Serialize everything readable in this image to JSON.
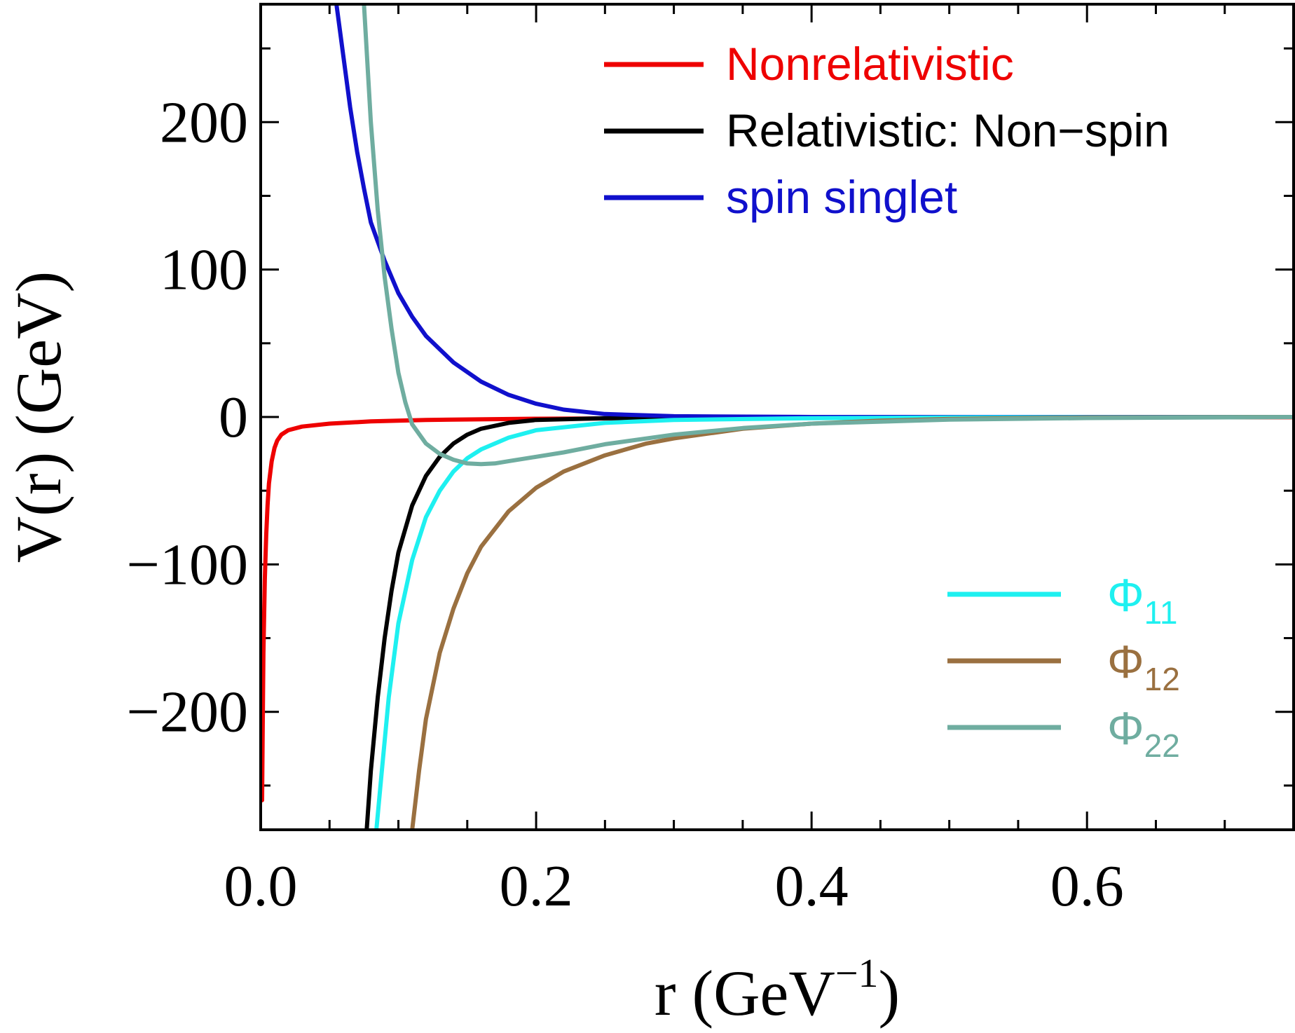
{
  "chart_data": {
    "type": "line",
    "xlabel": {
      "base": "r (GeV",
      "sup": "−1",
      "close": ")"
    },
    "ylabel": "V(r) (GeV)",
    "xlim": [
      0.0,
      0.75
    ],
    "ylim": [
      -280,
      280
    ],
    "x_ticks": [
      {
        "value": 0.0,
        "label": "0.0"
      },
      {
        "value": 0.2,
        "label": "0.2"
      },
      {
        "value": 0.4,
        "label": "0.4"
      },
      {
        "value": 0.6,
        "label": "0.6"
      }
    ],
    "y_ticks": [
      {
        "value": 200,
        "label": "200"
      },
      {
        "value": 100,
        "label": "100"
      },
      {
        "value": 0,
        "label": "0"
      },
      {
        "value": -100,
        "label": "−100"
      },
      {
        "value": -200,
        "label": "−200"
      }
    ],
    "x_minor_step": 0.05,
    "y_minor_step": 50,
    "grid": false,
    "series": [
      {
        "name": "Nonrelativistic",
        "legend_group": "top",
        "color": "#ee0000",
        "points": [
          [
            0.001,
            -260
          ],
          [
            0.0015,
            -210
          ],
          [
            0.002,
            -160
          ],
          [
            0.003,
            -110
          ],
          [
            0.004,
            -80
          ],
          [
            0.005,
            -60
          ],
          [
            0.006,
            -45
          ],
          [
            0.008,
            -30
          ],
          [
            0.01,
            -21
          ],
          [
            0.012,
            -16
          ],
          [
            0.015,
            -12
          ],
          [
            0.02,
            -9
          ],
          [
            0.03,
            -6.5
          ],
          [
            0.05,
            -4.5
          ],
          [
            0.08,
            -3
          ],
          [
            0.12,
            -2
          ],
          [
            0.2,
            -1.2
          ],
          [
            0.3,
            -0.8
          ],
          [
            0.5,
            -0.4
          ],
          [
            0.75,
            -0.2
          ]
        ]
      },
      {
        "name": "Relativistic: Non−spin",
        "legend_group": "top",
        "color": "#000000",
        "points": [
          [
            0.077,
            -280
          ],
          [
            0.08,
            -240
          ],
          [
            0.085,
            -190
          ],
          [
            0.09,
            -150
          ],
          [
            0.095,
            -118
          ],
          [
            0.1,
            -92
          ],
          [
            0.11,
            -60
          ],
          [
            0.12,
            -40
          ],
          [
            0.13,
            -27
          ],
          [
            0.14,
            -18
          ],
          [
            0.15,
            -12
          ],
          [
            0.16,
            -8
          ],
          [
            0.18,
            -4
          ],
          [
            0.2,
            -2
          ],
          [
            0.25,
            -0.8
          ],
          [
            0.3,
            -0.3
          ],
          [
            0.4,
            -0.1
          ],
          [
            0.75,
            0
          ]
        ]
      },
      {
        "name": "spin singlet",
        "legend_group": "top",
        "color": "#1010cc",
        "points": [
          [
            0.055,
            280
          ],
          [
            0.06,
            245
          ],
          [
            0.065,
            210
          ],
          [
            0.07,
            180
          ],
          [
            0.075,
            155
          ],
          [
            0.08,
            132
          ],
          [
            0.09,
            106
          ],
          [
            0.1,
            84
          ],
          [
            0.11,
            68
          ],
          [
            0.12,
            55
          ],
          [
            0.14,
            37
          ],
          [
            0.16,
            24
          ],
          [
            0.18,
            15
          ],
          [
            0.2,
            9
          ],
          [
            0.22,
            5
          ],
          [
            0.25,
            2
          ],
          [
            0.3,
            0.5
          ],
          [
            0.4,
            0
          ],
          [
            0.75,
            0
          ]
        ]
      },
      {
        "name": "Φ",
        "sub": "11",
        "legend_group": "bottom",
        "color": "#1ef0f0",
        "points": [
          [
            0.084,
            -280
          ],
          [
            0.088,
            -240
          ],
          [
            0.093,
            -190
          ],
          [
            0.1,
            -140
          ],
          [
            0.11,
            -97
          ],
          [
            0.12,
            -68
          ],
          [
            0.13,
            -50
          ],
          [
            0.14,
            -37
          ],
          [
            0.15,
            -28
          ],
          [
            0.16,
            -22
          ],
          [
            0.18,
            -14
          ],
          [
            0.2,
            -9
          ],
          [
            0.25,
            -4
          ],
          [
            0.3,
            -2
          ],
          [
            0.4,
            -0.8
          ],
          [
            0.5,
            -0.3
          ],
          [
            0.75,
            0
          ]
        ]
      },
      {
        "name": "Φ",
        "sub": "12",
        "legend_group": "bottom",
        "color": "#9a7040",
        "points": [
          [
            0.11,
            -280
          ],
          [
            0.115,
            -240
          ],
          [
            0.12,
            -205
          ],
          [
            0.13,
            -160
          ],
          [
            0.14,
            -130
          ],
          [
            0.15,
            -106
          ],
          [
            0.16,
            -88
          ],
          [
            0.18,
            -64
          ],
          [
            0.2,
            -48
          ],
          [
            0.22,
            -37
          ],
          [
            0.25,
            -26
          ],
          [
            0.28,
            -18
          ],
          [
            0.3,
            -14.5
          ],
          [
            0.35,
            -8
          ],
          [
            0.4,
            -4.5
          ],
          [
            0.45,
            -2.5
          ],
          [
            0.5,
            -1.3
          ],
          [
            0.6,
            -0.4
          ],
          [
            0.75,
            0
          ]
        ]
      },
      {
        "name": "Φ",
        "sub": "22",
        "legend_group": "bottom",
        "color": "#6fada0",
        "points": [
          [
            0.075,
            280
          ],
          [
            0.08,
            200
          ],
          [
            0.085,
            140
          ],
          [
            0.09,
            95
          ],
          [
            0.095,
            60
          ],
          [
            0.1,
            30
          ],
          [
            0.105,
            10
          ],
          [
            0.11,
            -5
          ],
          [
            0.12,
            -18
          ],
          [
            0.13,
            -25
          ],
          [
            0.14,
            -29
          ],
          [
            0.15,
            -31.5
          ],
          [
            0.16,
            -32
          ],
          [
            0.17,
            -31.5
          ],
          [
            0.18,
            -30
          ],
          [
            0.2,
            -27
          ],
          [
            0.22,
            -24
          ],
          [
            0.25,
            -18.5
          ],
          [
            0.3,
            -12
          ],
          [
            0.35,
            -7.5
          ],
          [
            0.4,
            -4.5
          ],
          [
            0.5,
            -1.8
          ],
          [
            0.6,
            -0.7
          ],
          [
            0.75,
            0
          ]
        ]
      }
    ]
  }
}
